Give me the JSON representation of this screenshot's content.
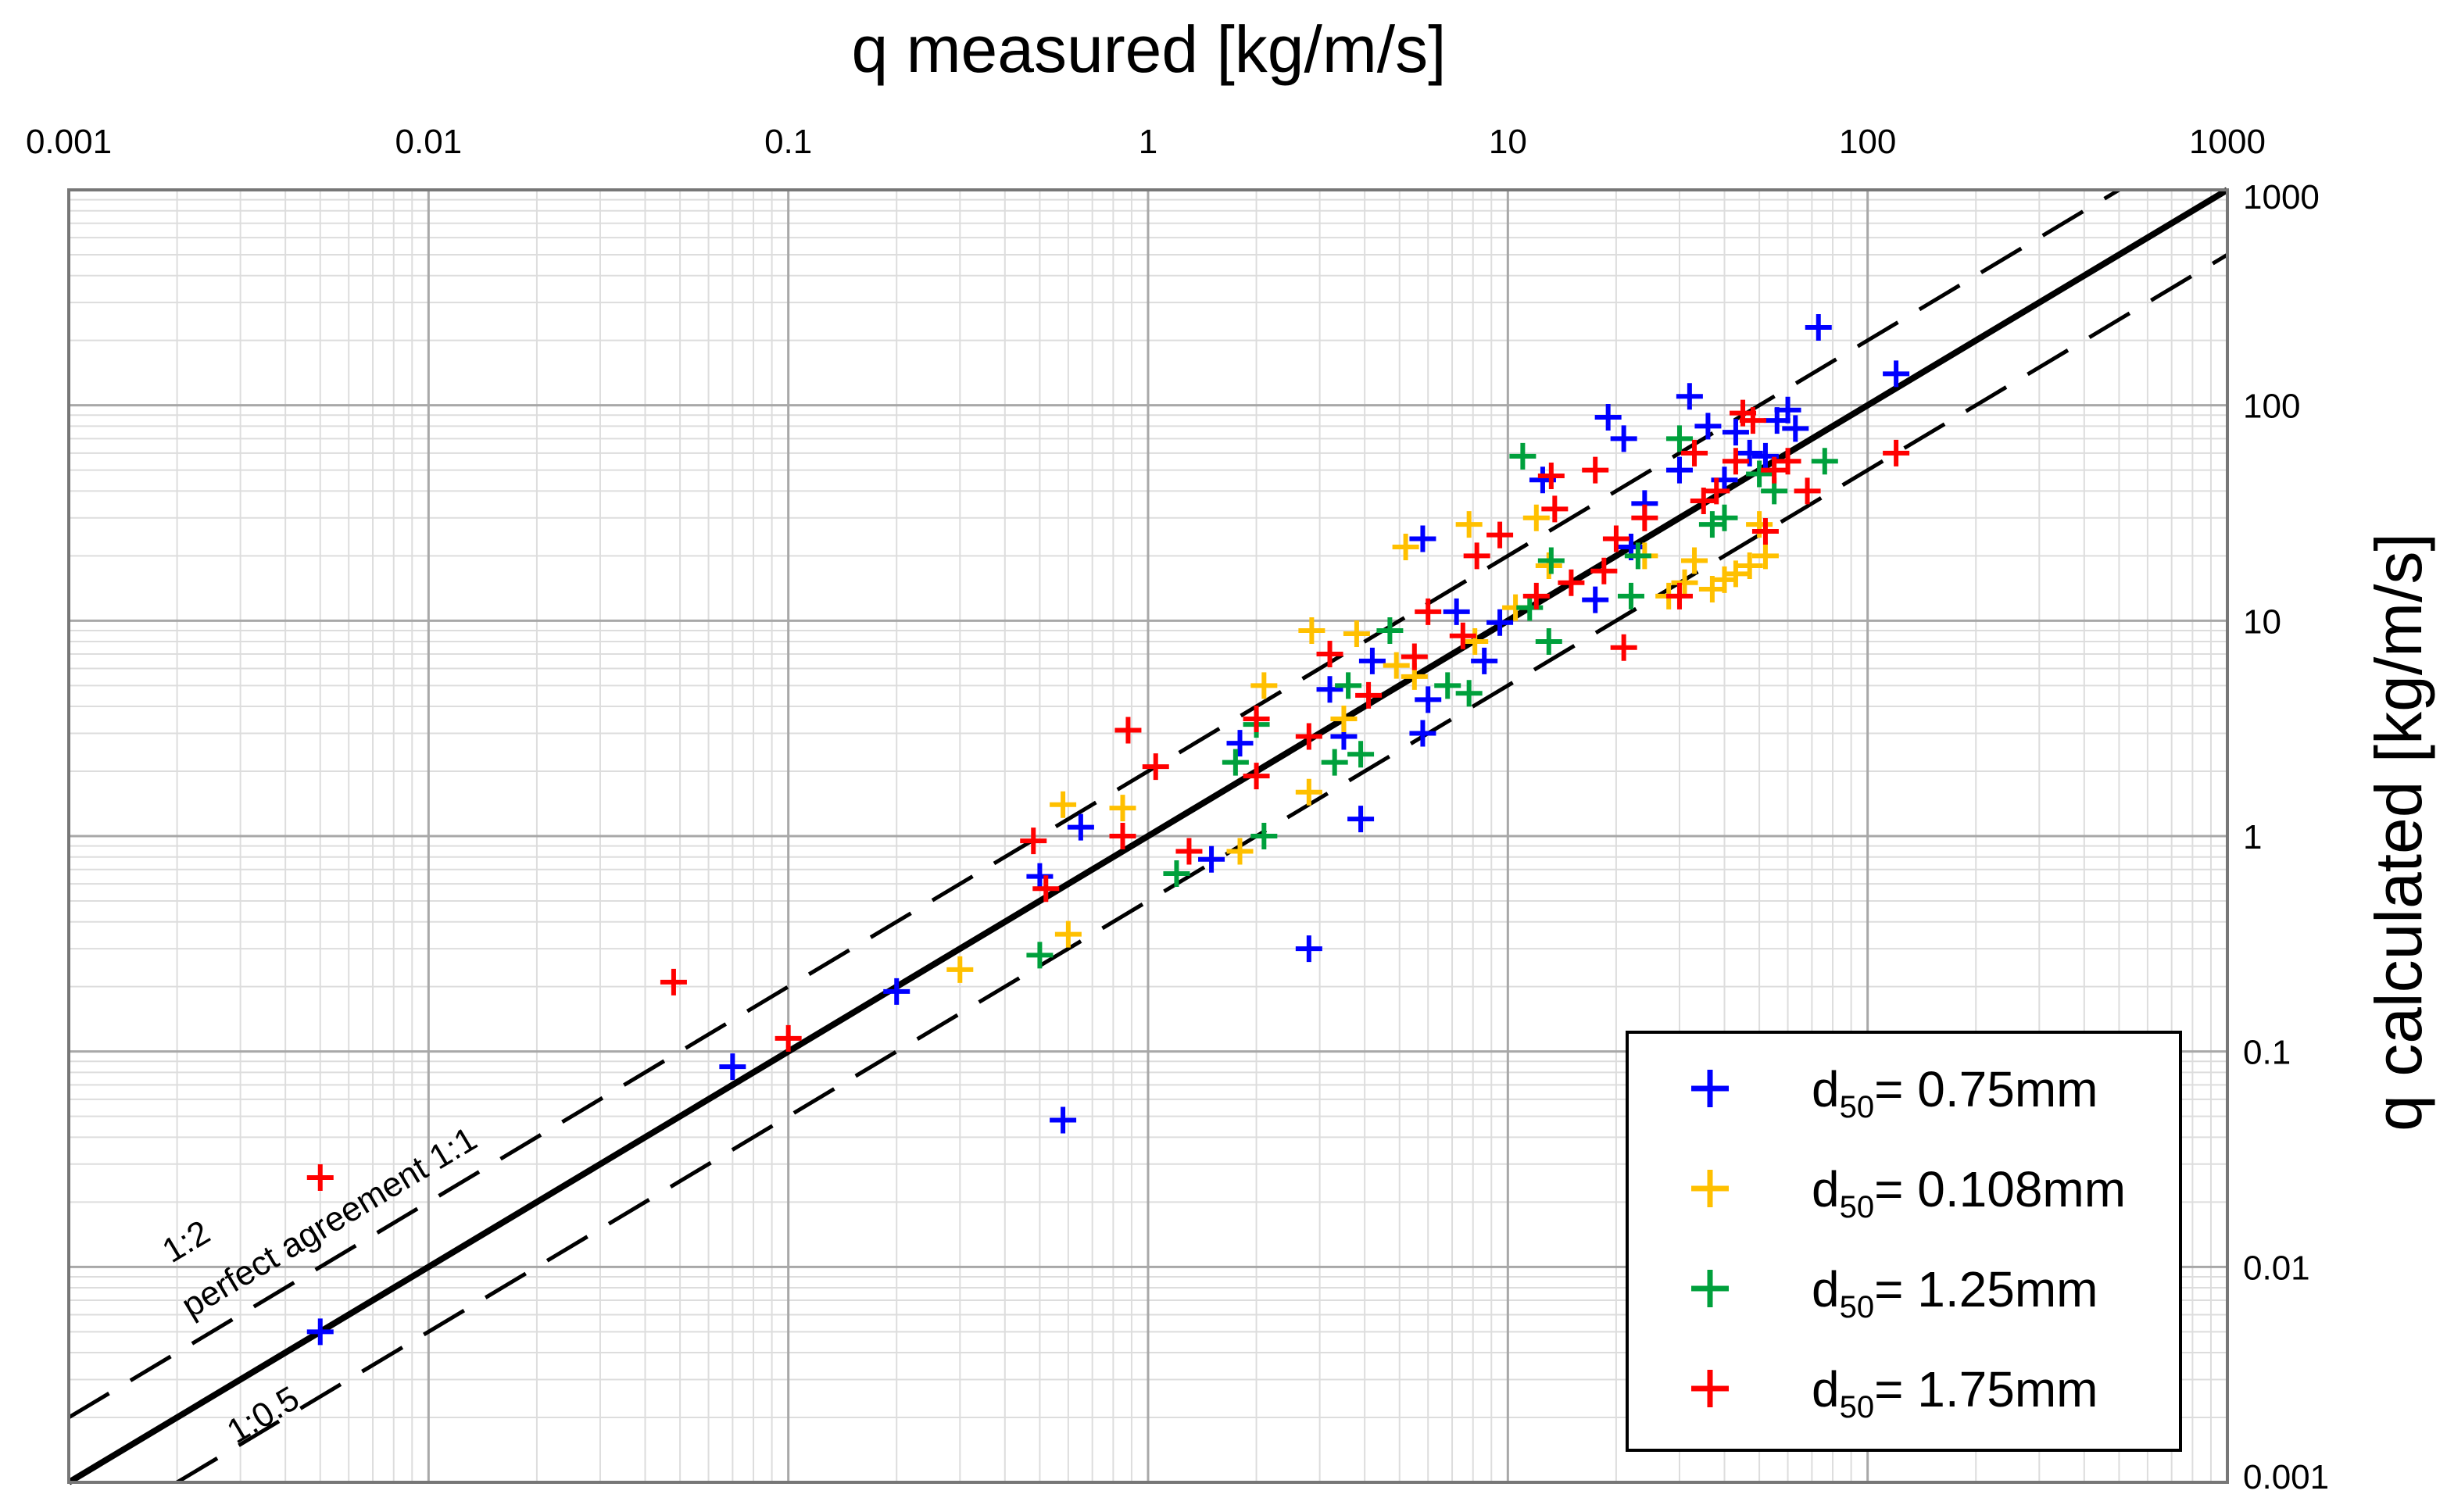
{
  "chart_data": {
    "type": "scatter",
    "xscale": "log",
    "yscale": "log",
    "xlabel": "q  measured [kg/m/s]",
    "ylabel": "q  calculated [kg/m/s]",
    "xlim": [
      0.001,
      1000
    ],
    "ylim": [
      0.001,
      1000
    ],
    "x_ticks": [
      "0.001",
      "0.01",
      "0.1",
      "1",
      "10",
      "100",
      "1000"
    ],
    "y_ticks": [
      "0.001",
      "0.01",
      "0.1",
      "1",
      "10",
      "100",
      "1000"
    ],
    "x_tick_values": [
      0.001,
      0.01,
      0.1,
      1,
      10,
      100,
      1000
    ],
    "y_tick_values": [
      0.001,
      0.01,
      0.1,
      1,
      10,
      100,
      1000
    ],
    "grid": true,
    "legend_position": "bottom-right",
    "reference_lines": [
      {
        "name": "perfect agreement 1:1",
        "label": "perfect agreement 1:1",
        "ratio": 1,
        "style": "solid"
      },
      {
        "name": "1:2",
        "label": "1:2",
        "ratio": 2,
        "style": "dashed"
      },
      {
        "name": "1:0.5",
        "label": "1:0.5",
        "ratio": 0.5,
        "style": "dashed"
      }
    ],
    "series": [
      {
        "name": "d50= 0.75mm",
        "label_main": "d",
        "label_sub": "50",
        "label_rest": "= 0.75mm",
        "color": "#0000ff",
        "points": [
          [
            0.005,
            0.005
          ],
          [
            0.07,
            0.085
          ],
          [
            0.2,
            0.19
          ],
          [
            0.5,
            0.65
          ],
          [
            0.58,
            0.048
          ],
          [
            0.65,
            1.1
          ],
          [
            1.5,
            0.78
          ],
          [
            1.8,
            2.7
          ],
          [
            2.8,
            0.3
          ],
          [
            3.2,
            4.8
          ],
          [
            3.5,
            2.9
          ],
          [
            3.9,
            1.2
          ],
          [
            4.2,
            6.5
          ],
          [
            5.8,
            3.0
          ],
          [
            5.8,
            24
          ],
          [
            6.0,
            4.3
          ],
          [
            7.2,
            11
          ],
          [
            8.6,
            6.5
          ],
          [
            9.5,
            9.8
          ],
          [
            12.5,
            45
          ],
          [
            17.5,
            12.5
          ],
          [
            19,
            88
          ],
          [
            21,
            70
          ],
          [
            22,
            22
          ],
          [
            24,
            35
          ],
          [
            30,
            50
          ],
          [
            32,
            110
          ],
          [
            36,
            80
          ],
          [
            40,
            45
          ],
          [
            43,
            75
          ],
          [
            47,
            60
          ],
          [
            52,
            58
          ],
          [
            56,
            85
          ],
          [
            60,
            95
          ],
          [
            63,
            78
          ],
          [
            73,
            230
          ],
          [
            120,
            140
          ]
        ]
      },
      {
        "name": "d50= 0.108mm",
        "label_main": "d",
        "label_sub": "50",
        "label_rest": "= 0.108mm",
        "color": "#ffc000",
        "points": [
          [
            0.3,
            0.24
          ],
          [
            0.58,
            1.4
          ],
          [
            0.6,
            0.35
          ],
          [
            0.85,
            1.35
          ],
          [
            1.8,
            0.85
          ],
          [
            2.1,
            5.0
          ],
          [
            2.8,
            1.6
          ],
          [
            2.85,
            9.0
          ],
          [
            3.5,
            3.5
          ],
          [
            3.8,
            8.7
          ],
          [
            4.9,
            6.2
          ],
          [
            5.2,
            22
          ],
          [
            5.5,
            5.5
          ],
          [
            7.8,
            28
          ],
          [
            8.1,
            8.0
          ],
          [
            10.5,
            11.5
          ],
          [
            12,
            30
          ],
          [
            13,
            18
          ],
          [
            24,
            20
          ],
          [
            28,
            13
          ],
          [
            31,
            15
          ],
          [
            33,
            19
          ],
          [
            37,
            14
          ],
          [
            40,
            15.5
          ],
          [
            43,
            16.5
          ],
          [
            47,
            18
          ],
          [
            50,
            28
          ],
          [
            52,
            20
          ]
        ]
      },
      {
        "name": "d50= 1.25mm",
        "label_main": "d",
        "label_sub": "50",
        "label_rest": "= 1.25mm",
        "color": "#00a03c",
        "points": [
          [
            0.5,
            0.28
          ],
          [
            1.2,
            0.67
          ],
          [
            1.75,
            2.2
          ],
          [
            2.0,
            3.3
          ],
          [
            2.1,
            1.0
          ],
          [
            3.3,
            2.2
          ],
          [
            3.6,
            5.0
          ],
          [
            3.9,
            2.4
          ],
          [
            4.7,
            9.0
          ],
          [
            6.8,
            5.0
          ],
          [
            7.8,
            4.6
          ],
          [
            11,
            58
          ],
          [
            11.5,
            11.5
          ],
          [
            13,
            8.0
          ],
          [
            13.2,
            19
          ],
          [
            22,
            13
          ],
          [
            23,
            20
          ],
          [
            30,
            70
          ],
          [
            37,
            28
          ],
          [
            40,
            30
          ],
          [
            50,
            48
          ],
          [
            55,
            40
          ],
          [
            76,
            55
          ]
        ]
      },
      {
        "name": "d50= 1.75mm",
        "label_main": "d",
        "label_sub": "50",
        "label_rest": "= 1.75mm",
        "color": "#ff0000",
        "points": [
          [
            0.005,
            0.026
          ],
          [
            0.048,
            0.21
          ],
          [
            0.1,
            0.115
          ],
          [
            0.48,
            0.95
          ],
          [
            0.52,
            0.57
          ],
          [
            0.85,
            1.0
          ],
          [
            0.88,
            3.1
          ],
          [
            1.05,
            2.1
          ],
          [
            1.3,
            0.85
          ],
          [
            2.0,
            1.9
          ],
          [
            2.0,
            3.5
          ],
          [
            2.8,
            2.9
          ],
          [
            3.2,
            7.0
          ],
          [
            4.1,
            4.5
          ],
          [
            5.5,
            6.8
          ],
          [
            6.0,
            11
          ],
          [
            7.5,
            8.5
          ],
          [
            8.2,
            20
          ],
          [
            9.5,
            25
          ],
          [
            12,
            13
          ],
          [
            13.2,
            47
          ],
          [
            13.5,
            33
          ],
          [
            15,
            15
          ],
          [
            17.5,
            50
          ],
          [
            18.5,
            17
          ],
          [
            20,
            24
          ],
          [
            21,
            7.5
          ],
          [
            24,
            30
          ],
          [
            30,
            13
          ],
          [
            33,
            60
          ],
          [
            35,
            36
          ],
          [
            38,
            40
          ],
          [
            43,
            55
          ],
          [
            45,
            92
          ],
          [
            48,
            85
          ],
          [
            52,
            26
          ],
          [
            55,
            50
          ],
          [
            60,
            55
          ],
          [
            68,
            40
          ],
          [
            120,
            60
          ]
        ]
      }
    ]
  }
}
